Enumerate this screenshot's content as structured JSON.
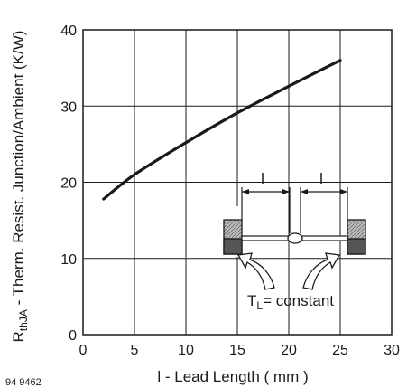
{
  "chart_data": {
    "type": "line",
    "xlabel": "l - Lead Length ( mm )",
    "ylabel_main": "R",
    "ylabel_sub": "thJA",
    "ylabel_rest": " - Therm. Resist. Junction/Ambient (K/W)",
    "xlim": [
      0,
      30
    ],
    "ylim": [
      0,
      40
    ],
    "xticks": [
      "0",
      "5",
      "10",
      "15",
      "20",
      "25",
      "30"
    ],
    "yticks": [
      "0",
      "10",
      "20",
      "30",
      "40"
    ],
    "grid": true,
    "series": [
      {
        "x": [
          2,
          5,
          10,
          15,
          20,
          25
        ],
        "y": [
          17.8,
          21,
          25.2,
          29.1,
          32.6,
          36
        ]
      }
    ]
  },
  "figure_code": "94 9462",
  "inset": {
    "dim_label_left": "l",
    "dim_label_right": "l",
    "temp_main": "T",
    "temp_sub": "L",
    "temp_rest": "= constant"
  }
}
